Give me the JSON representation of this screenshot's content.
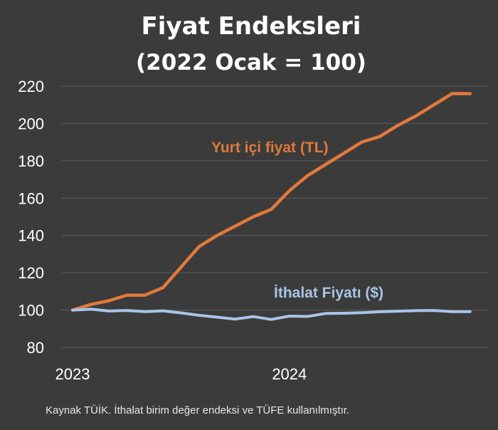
{
  "chart_data": {
    "type": "line",
    "title": "Fiyat Endeksleri",
    "subtitle": "(2022 Ocak = 100)",
    "xlabel": "",
    "ylabel": "",
    "ylim": [
      80,
      220
    ],
    "yticks": [
      "80",
      "100",
      "120",
      "140",
      "160",
      "180",
      "200",
      "220"
    ],
    "x_tick_labels": [
      "2023",
      "2024"
    ],
    "grid": true,
    "x": [
      "2023-01",
      "2023-02",
      "2023-03",
      "2023-04",
      "2023-05",
      "2023-06",
      "2023-07",
      "2023-08",
      "2023-09",
      "2023-10",
      "2023-11",
      "2023-12",
      "2024-01",
      "2024-02",
      "2024-03",
      "2024-04",
      "2024-05",
      "2024-06",
      "2024-07",
      "2024-08",
      "2024-09",
      "2024-10",
      "2024-11"
    ],
    "series": [
      {
        "name": "Yurt içi fiyat (TL)",
        "color": "#e07a3c",
        "values": [
          100,
          103,
          105,
          108,
          108,
          112,
          123,
          134,
          140,
          145,
          150,
          154,
          164,
          172,
          178,
          184,
          190,
          193,
          199,
          204,
          210,
          216,
          216
        ]
      },
      {
        "name": "İthalat Fiyatı ($)",
        "color": "#a9c4e6",
        "values": [
          100,
          100.5,
          99.5,
          99.8,
          99.2,
          99.6,
          98.5,
          97.2,
          96.2,
          95.2,
          96.5,
          95,
          96.8,
          96.6,
          98.2,
          98.3,
          98.6,
          99.1,
          99.4,
          99.7,
          99.8,
          99.2,
          99.2
        ]
      }
    ],
    "source_note": "Kaynak TÜİK. İthalat birim değer endeksi ve TÜFE kullanılmıştır."
  }
}
